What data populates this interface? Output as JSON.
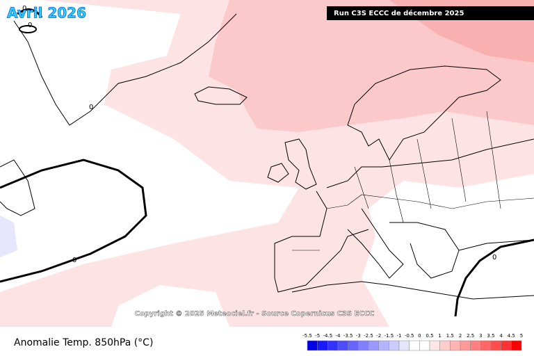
{
  "title": "Avril 2026",
  "run_label": "Run C3S ECCC de décembre 2025",
  "copyright": "Copyright © 2025 Meteociel.fr - Source Copernicus C3S ECCC",
  "variable": "Anomalie Temp. 850hPa (°C)",
  "contour_labels": [
    "0",
    "0",
    "0",
    "0",
    "0"
  ],
  "legend": {
    "labels": [
      -5.5,
      -5,
      -4.5,
      -4,
      -3.5,
      -3,
      -2.5,
      -2,
      -1.5,
      -1,
      -0.5,
      0,
      0.5,
      1,
      1.5,
      2,
      2.5,
      3,
      3.5,
      4,
      4.5,
      5
    ],
    "colors": [
      "#0000e6",
      "#1a1aff",
      "#3333ff",
      "#4d4dff",
      "#6666ff",
      "#8080ff",
      "#9999ff",
      "#b3b3ff",
      "#ccccff",
      "#e6e6ff",
      "#ffffff",
      "#ffffff",
      "#ffe6e6",
      "#ffcccc",
      "#ffb3b3",
      "#ff9999",
      "#ff8080",
      "#ff6666",
      "#ff4d4d",
      "#ff3333",
      "#ff0000"
    ]
  }
}
